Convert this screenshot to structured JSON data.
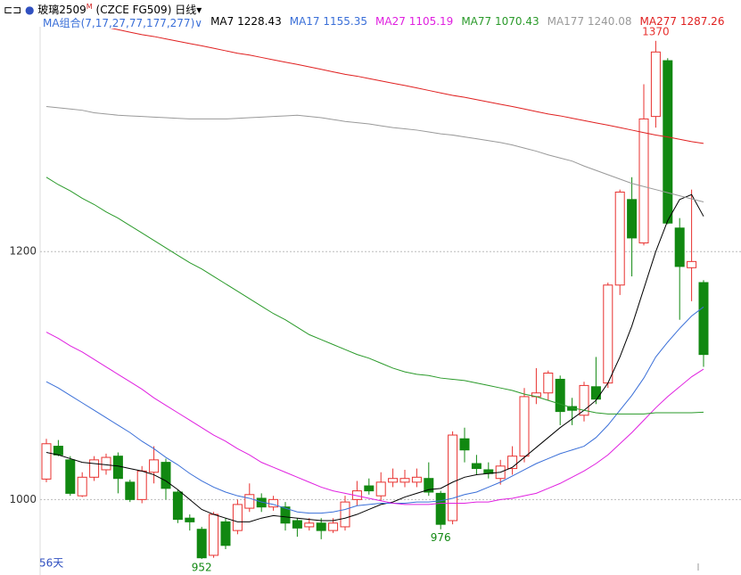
{
  "chart_data": {
    "type": "candlestick",
    "title": "玻璃2509",
    "title_sup": "M",
    "code": "(CZCE FG509)",
    "period": "日线",
    "ma_group": "MA组合(7,17,27,77,177,277)",
    "days_label": "56天",
    "up_color": "#e8312f",
    "down_color": "#118811",
    "ylim": [
      942,
      1390
    ],
    "yticks": [
      1000,
      1200
    ],
    "grid": true,
    "open": [
      1016.5,
      1043,
      1032,
      1003,
      1018,
      1024,
      1035,
      1014,
      1000,
      1022,
      1030,
      1006,
      985,
      976,
      955,
      982,
      975,
      993,
      1001,
      994,
      994,
      983,
      978,
      981,
      975,
      978,
      1000,
      1011,
      1003,
      1014,
      1014,
      1014,
      1017,
      1005,
      983,
      1049,
      1029,
      1024,
      1017,
      1025,
      1035,
      1083,
      1086,
      1097,
      1075,
      1068,
      1091,
      1094,
      1173,
      1242,
      1207,
      1309,
      1354,
      1219,
      1187,
      1175
    ],
    "high": [
      1049,
      1048,
      1035,
      1022,
      1035,
      1037,
      1038,
      1016,
      1027,
      1043,
      1033,
      1008,
      988,
      978,
      990,
      985,
      1000,
      1013,
      1005,
      1003,
      998,
      985,
      985,
      985,
      985,
      1003,
      1015,
      1017,
      1022,
      1025,
      1024,
      1025,
      1030,
      1007,
      1055,
      1058,
      1036,
      1030,
      1032,
      1043,
      1090,
      1106,
      1104,
      1100,
      1082,
      1095,
      1115,
      1175,
      1250,
      1260,
      1335,
      1370,
      1356,
      1227,
      1250,
      1177
    ],
    "low": [
      1014,
      1035,
      1003,
      1002,
      1015,
      1020,
      1005,
      998,
      997,
      1013,
      1000,
      981,
      975,
      952,
      953,
      960,
      972,
      990,
      990,
      991,
      975,
      970,
      975,
      968,
      973,
      975,
      995,
      1004,
      999,
      1010,
      1010,
      1010,
      1003,
      976,
      980,
      1030,
      1020,
      1017,
      1012,
      1020,
      1030,
      1077,
      1080,
      1060,
      1060,
      1063,
      1077,
      1090,
      1165,
      1180,
      1205,
      1300,
      1222,
      1145,
      1160,
      1107
    ],
    "close": [
      1045,
      1036,
      1005,
      1018,
      1032,
      1034,
      1017,
      1000,
      1023,
      1032,
      1009,
      984,
      982,
      953,
      988,
      963,
      996,
      1004,
      994,
      1000,
      981,
      977,
      981,
      975,
      981,
      998,
      1007,
      1007,
      1014,
      1017,
      1017,
      1018,
      1006,
      980,
      1052,
      1040,
      1025,
      1021,
      1027,
      1035,
      1083,
      1086,
      1102,
      1071,
      1072,
      1092,
      1081,
      1173,
      1248,
      1211,
      1307,
      1361,
      1223,
      1188,
      1192,
      1117
    ],
    "annotations": [
      1370,
      952,
      976
    ],
    "ma_series": [
      {
        "name": "MA7",
        "last": 1228.43,
        "color": "#000000",
        "values": [
          1038,
          1036,
          1033,
          1030,
          1029,
          1028,
          1027,
          1025,
          1023,
          1020,
          1015,
          1008,
          1000,
          992,
          988,
          985,
          982,
          982,
          985,
          987,
          986,
          985,
          984,
          983,
          983,
          985,
          988,
          992,
          996,
          998,
          1002,
          1005,
          1008,
          1009,
          1014,
          1018,
          1020,
          1021,
          1022,
          1026,
          1034,
          1042,
          1050,
          1058,
          1065,
          1072,
          1080,
          1094,
          1115,
          1140,
          1170,
          1200,
          1225,
          1242,
          1246,
          1228.43
        ]
      },
      {
        "name": "MA17",
        "last": 1155.35,
        "color": "#3a6fd8",
        "values": [
          1095,
          1090,
          1084,
          1078,
          1072,
          1066,
          1060,
          1054,
          1047,
          1041,
          1034,
          1028,
          1021,
          1015,
          1010,
          1006,
          1003,
          1001,
          998,
          996,
          993,
          990,
          989,
          989,
          990,
          992,
          995,
          996,
          997,
          997,
          997,
          998,
          998,
          999,
          1001,
          1004,
          1006,
          1010,
          1014,
          1019,
          1024,
          1029,
          1033,
          1037,
          1040,
          1043,
          1050,
          1060,
          1072,
          1084,
          1098,
          1115,
          1127,
          1138,
          1148,
          1155.35
        ]
      },
      {
        "name": "MA27",
        "last": 1105.19,
        "color": "#e020e0",
        "values": [
          1135,
          1130,
          1124,
          1119,
          1113,
          1107,
          1101,
          1095,
          1089,
          1082,
          1076,
          1070,
          1064,
          1058,
          1052,
          1047,
          1041,
          1036,
          1030,
          1026,
          1022,
          1018,
          1014,
          1010,
          1007,
          1005,
          1003,
          1001,
          999,
          997,
          996,
          996,
          996,
          997,
          997,
          997,
          998,
          998,
          1000,
          1001,
          1003,
          1005,
          1009,
          1013,
          1018,
          1023,
          1029,
          1036,
          1045,
          1054,
          1064,
          1074,
          1083,
          1091,
          1099,
          1105.19
        ]
      },
      {
        "name": "MA77",
        "last": 1070.43,
        "color": "#2a9a2a",
        "values": [
          1260,
          1254,
          1249,
          1243,
          1238,
          1232,
          1227,
          1221,
          1215,
          1209,
          1203,
          1197,
          1191,
          1186,
          1180,
          1174,
          1168,
          1162,
          1156,
          1150,
          1145,
          1139,
          1133,
          1129,
          1125,
          1121,
          1117,
          1114,
          1110,
          1106,
          1103,
          1101,
          1100,
          1098,
          1097,
          1096,
          1094,
          1092,
          1090,
          1088,
          1085,
          1083,
          1080,
          1077,
          1074,
          1072,
          1070,
          1069,
          1069,
          1069,
          1069,
          1070,
          1070,
          1070,
          1070,
          1070.43
        ]
      },
      {
        "name": "MA177",
        "last": 1240.08,
        "color": "#999999",
        "values": [
          1317,
          1316,
          1315,
          1314,
          1312,
          1311,
          1310,
          1309.5,
          1309,
          1308.5,
          1308,
          1307.5,
          1307,
          1307,
          1307,
          1307,
          1307.5,
          1308,
          1308.5,
          1309,
          1309.5,
          1310,
          1309,
          1308,
          1306.5,
          1305,
          1304,
          1303,
          1301.5,
          1300,
          1299,
          1298,
          1296.5,
          1295,
          1294,
          1292.5,
          1291,
          1289.5,
          1288,
          1286,
          1283.5,
          1281,
          1278,
          1275.5,
          1273,
          1269,
          1265.5,
          1262,
          1258.5,
          1255,
          1252.5,
          1250,
          1247.5,
          1245,
          1242.5,
          1240.08
        ]
      },
      {
        "name": "MA277",
        "last": 1287.26,
        "color": "#e02020",
        "values": [
          null,
          null,
          null,
          null,
          null,
          1381,
          1379,
          1377,
          1375,
          1373.5,
          1371.6,
          1369.7,
          1367.8,
          1366,
          1364,
          1362,
          1360,
          1358.5,
          1356.6,
          1354.7,
          1352.8,
          1351,
          1349,
          1347,
          1345,
          1343,
          1341.5,
          1339.6,
          1337.7,
          1335.8,
          1334,
          1332,
          1330,
          1328,
          1326,
          1324.5,
          1322.6,
          1320.7,
          1318.8,
          1317,
          1315,
          1313,
          1311,
          1309.5,
          1307.6,
          1305.7,
          1303.8,
          1302,
          1300,
          1298,
          1296,
          1294,
          1292.5,
          1290.6,
          1288.7,
          1287.26
        ]
      }
    ]
  }
}
